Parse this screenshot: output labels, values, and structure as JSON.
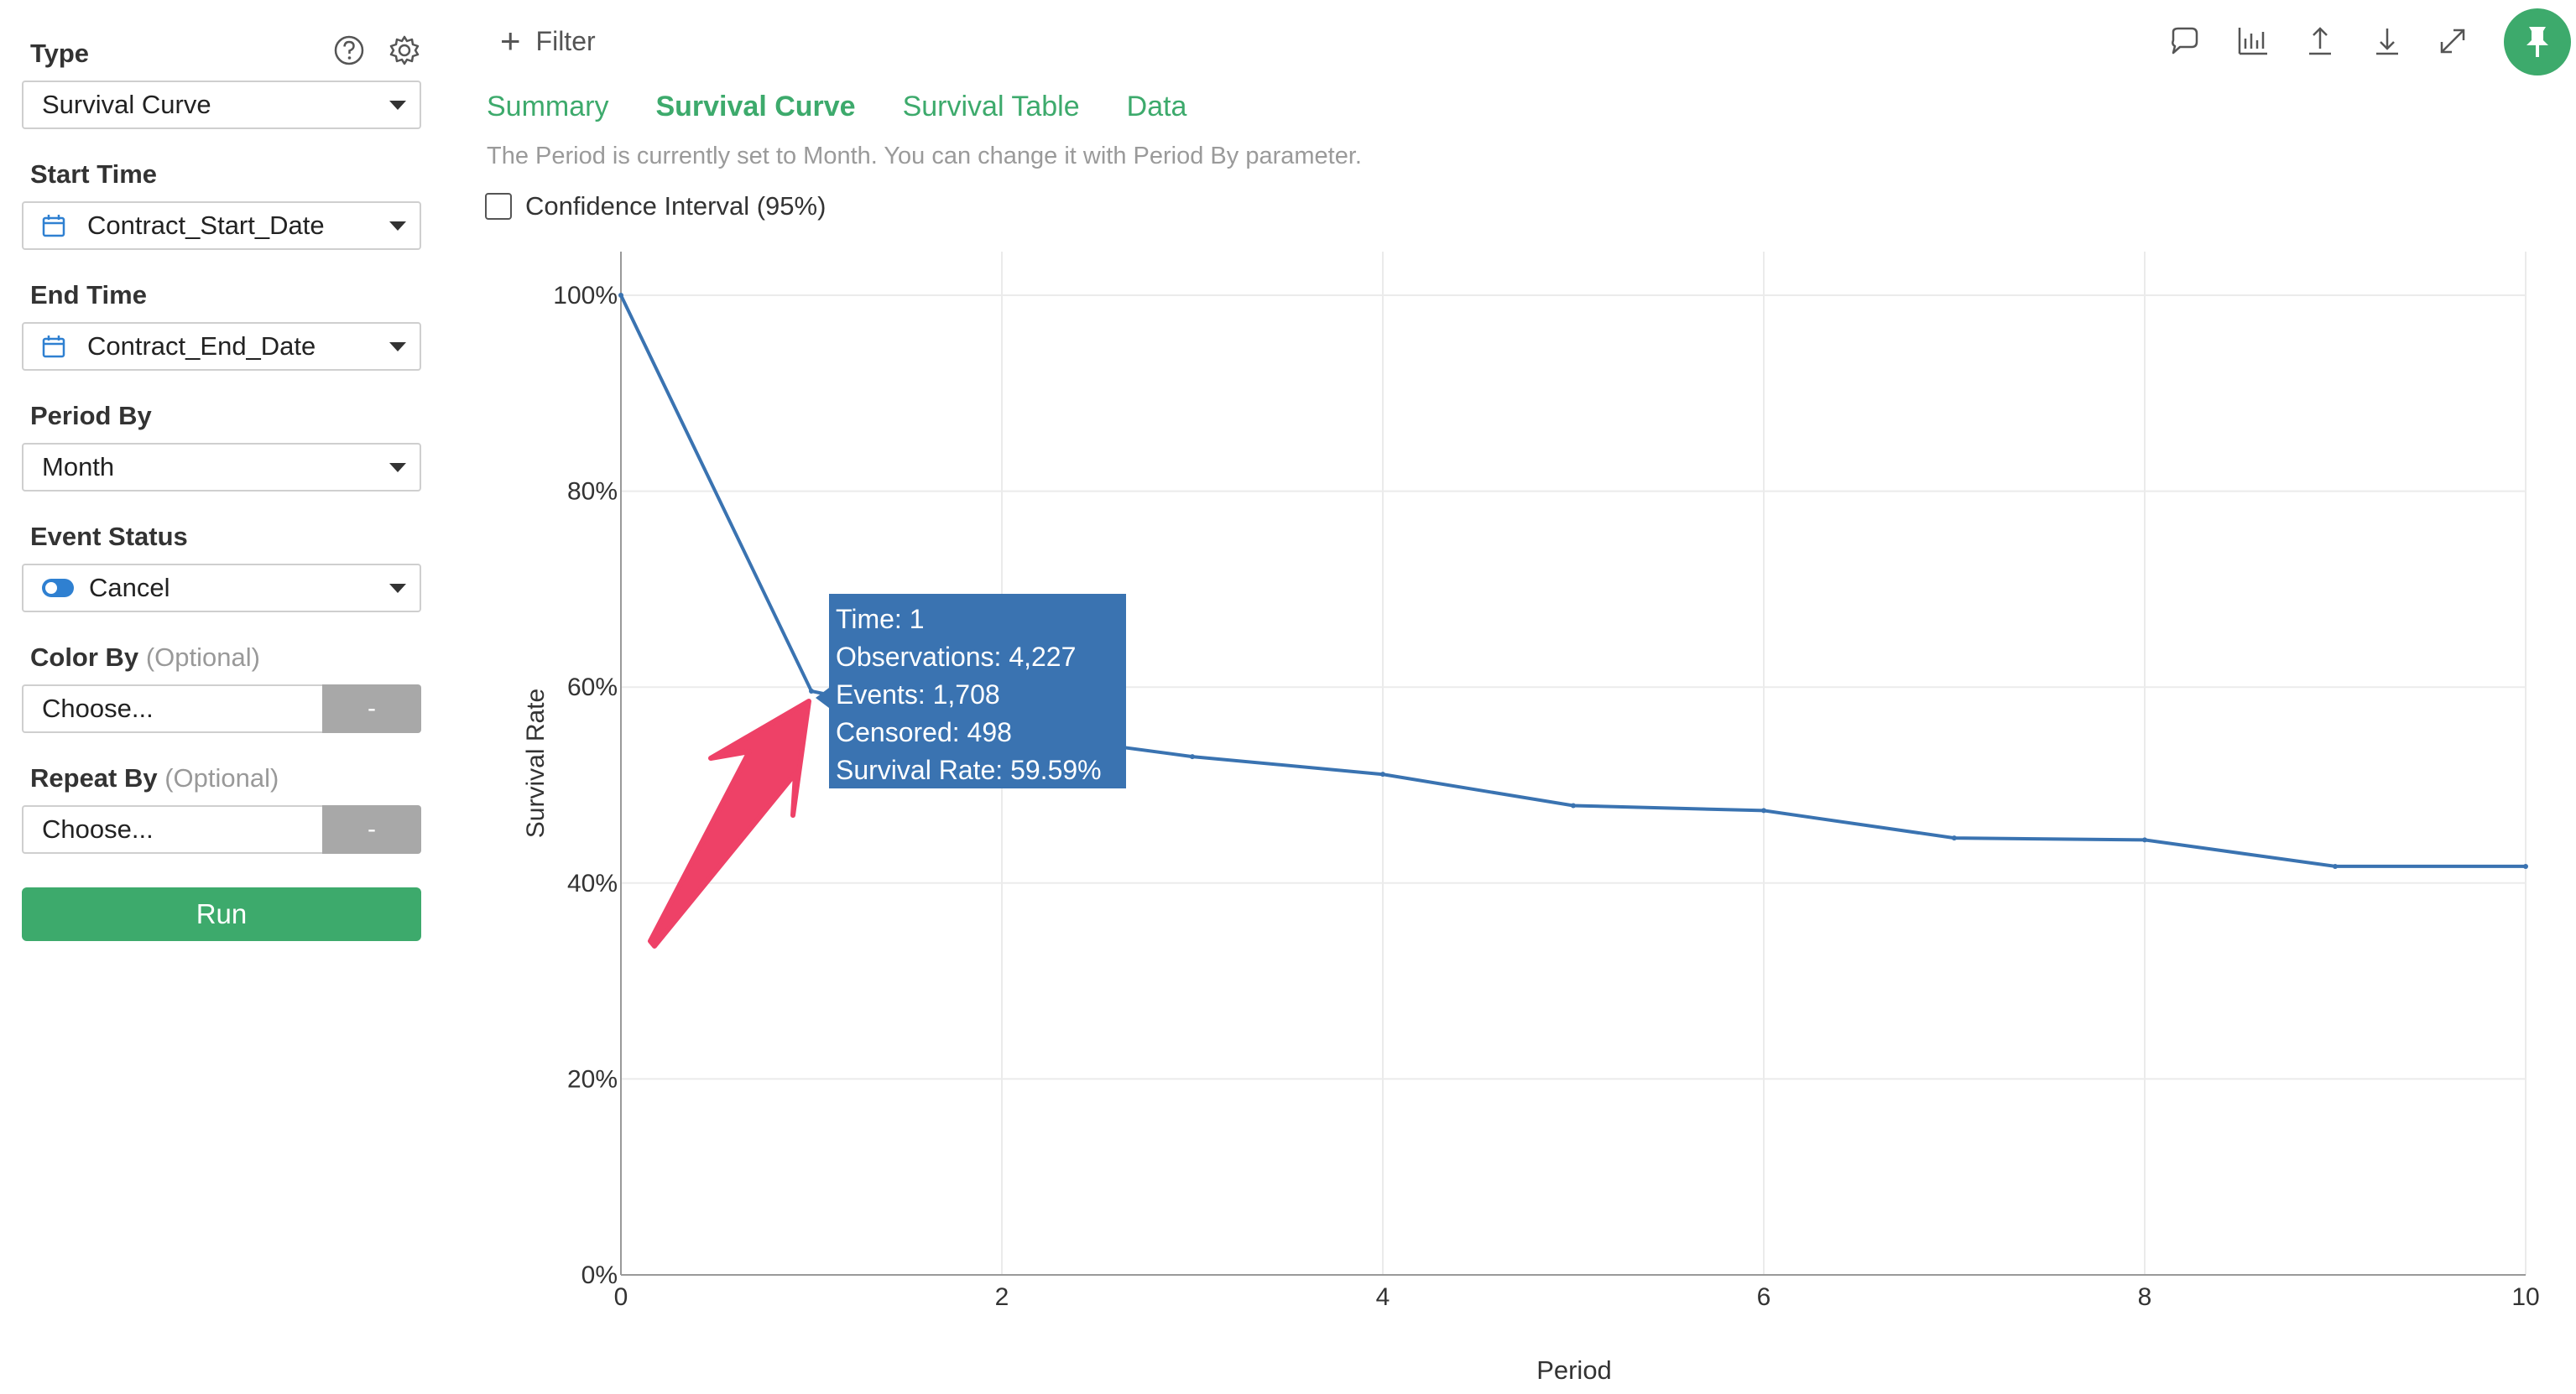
{
  "sidebar": {
    "type_label": "Type",
    "type_value": "Survival Curve",
    "start_label": "Start Time",
    "start_value": "Contract_Start_Date",
    "end_label": "End Time",
    "end_value": "Contract_End_Date",
    "period_label": "Period By",
    "period_value": "Month",
    "event_label": "Event Status",
    "event_value": "Cancel",
    "color_label": "Color By",
    "color_optional": "(Optional)",
    "color_placeholder": "Choose...",
    "color_dash": "-",
    "repeat_label": "Repeat By",
    "repeat_optional": "(Optional)",
    "repeat_placeholder": "Choose...",
    "repeat_dash": "-",
    "run_label": "Run",
    "icons": [
      "help-icon",
      "gear-icon",
      "calendar-icon",
      "toggle-icon",
      "chevron-down-icon"
    ]
  },
  "header": {
    "filter_label": "Filter",
    "tabs": [
      {
        "label": "Summary",
        "active": false
      },
      {
        "label": "Survival Curve",
        "active": true
      },
      {
        "label": "Survival Table",
        "active": false
      },
      {
        "label": "Data",
        "active": false
      }
    ],
    "hint": "The Period is currently set to Month. You can change it with Period By parameter.",
    "ci_label": "Confidence Interval (95%)",
    "ci_checked": false,
    "tool_icons": [
      "comment-icon",
      "bar-chart-icon",
      "upload-icon",
      "download-icon",
      "expand-icon",
      "pin-icon"
    ]
  },
  "tooltip": {
    "time": "Time: 1",
    "observations": "Observations: 4,227",
    "events": "Events: 1,708",
    "censored": "Censored: 498",
    "rate": "Survival Rate: 59.59%"
  },
  "colors": {
    "accent": "#3daa6c",
    "line": "#3a73b1",
    "tooltip": "#3a73b1",
    "arrow": "#ee4167"
  },
  "chart_data": {
    "type": "line",
    "title": "",
    "xlabel": "Period",
    "ylabel": "Survival Rate",
    "xlim": [
      0,
      10
    ],
    "ylim": [
      0,
      100
    ],
    "x_ticks": [
      0,
      2,
      4,
      6,
      8,
      10
    ],
    "y_ticks": [
      "0%",
      "20%",
      "40%",
      "60%",
      "80%",
      "100%"
    ],
    "grid": true,
    "legend": "none",
    "series": [
      {
        "x": [
          0,
          1,
          2,
          3,
          4,
          5,
          6,
          7,
          8,
          9,
          10
        ],
        "y": [
          100,
          59.59,
          55.5,
          52.9,
          51.1,
          47.9,
          47.4,
          44.6,
          44.4,
          41.7,
          41.7
        ]
      }
    ]
  }
}
